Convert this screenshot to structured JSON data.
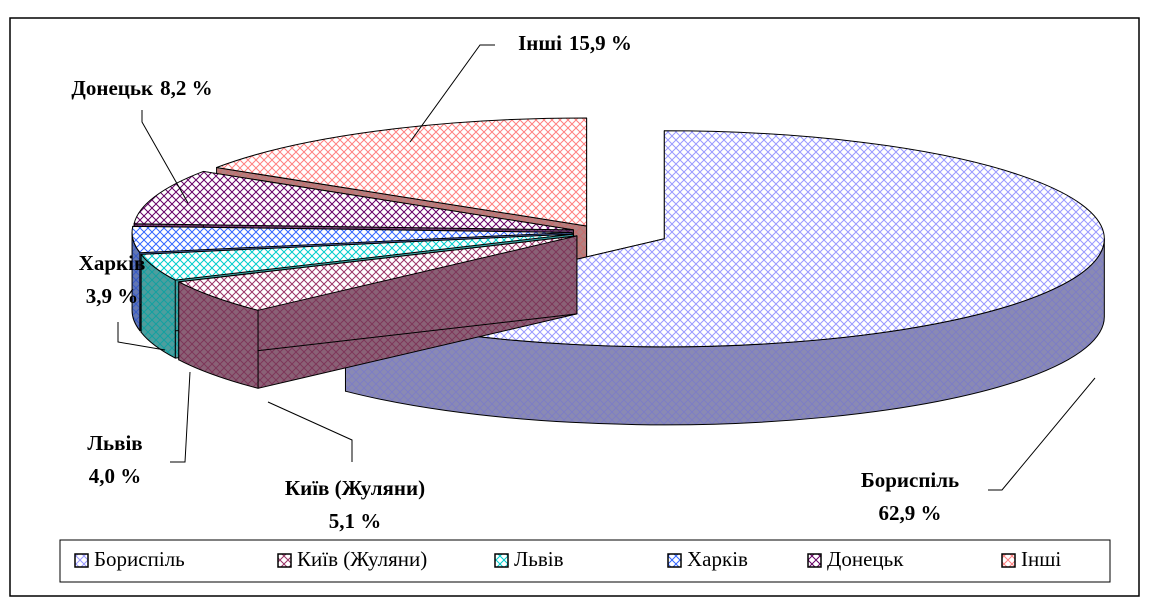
{
  "chart_data": {
    "type": "pie3d",
    "categories": [
      "Бориспіль",
      "Київ (Жуляни)",
      "Львів",
      "Харків",
      "Донецьк",
      "Інші"
    ],
    "values": [
      62.9,
      5.1,
      4.0,
      3.9,
      8.2,
      15.9
    ],
    "value_labels": [
      "62,9 %",
      "5,1 %",
      "4,0 %",
      "3,9 %",
      "8,2 %",
      "15,9 %"
    ],
    "colors": [
      "#9999ff",
      "#993366",
      "#00cccc",
      "#3366ff",
      "#660066",
      "#ff8080"
    ],
    "legend": "bottom"
  }
}
